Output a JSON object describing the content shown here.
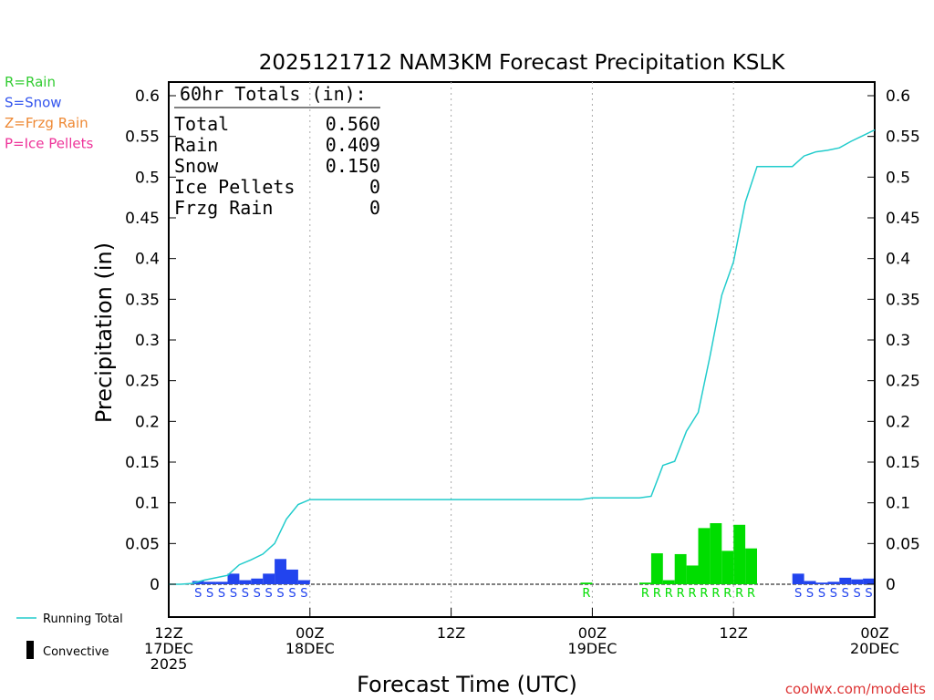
{
  "chart_data": {
    "type": "bar",
    "title": "2025121712 NAM3KM Forecast Precipitation KSLK",
    "xlabel": "Forecast Time (UTC)",
    "ylabel": "Precipitation (in)",
    "ylim": [
      -0.04,
      0.62
    ],
    "y_ticks": [
      "0",
      "0.05",
      "0.1",
      "0.15",
      "0.2",
      "0.25",
      "0.3",
      "0.35",
      "0.4",
      "0.45",
      "0.5",
      "0.55",
      "0.6"
    ],
    "y_tick_values": [
      0,
      0.05,
      0.1,
      0.15,
      0.2,
      0.25,
      0.3,
      0.35,
      0.4,
      0.45,
      0.5,
      0.55,
      0.6
    ],
    "x_range_hours": [
      0,
      60
    ],
    "x_ticks": [
      {
        "hour": 0,
        "lines": [
          "12Z",
          "17DEC",
          "2025"
        ]
      },
      {
        "hour": 12,
        "lines": [
          "00Z",
          "18DEC"
        ]
      },
      {
        "hour": 24,
        "lines": [
          "12Z"
        ]
      },
      {
        "hour": 36,
        "lines": [
          "00Z",
          "19DEC"
        ]
      },
      {
        "hour": 48,
        "lines": [
          "12Z"
        ]
      },
      {
        "hour": 60,
        "lines": [
          "00Z",
          "20DEC"
        ]
      }
    ],
    "gridlines_at_hours": [
      12,
      24,
      36,
      48
    ],
    "legend": [
      {
        "label": "R=Rain",
        "color": "#33cc33"
      },
      {
        "label": "S=Snow",
        "color": "#3355ee"
      },
      {
        "label": "Z=Frzg Rain",
        "color": "#ee8833"
      },
      {
        "label": "P=Ice Pellets",
        "color": "#ee3399"
      }
    ],
    "line_legend_label": "Running Total",
    "convective_legend_label": "Convective",
    "totals": {
      "header": "60hr Totals (in):",
      "rows": [
        {
          "label": "Total",
          "value": "0.560"
        },
        {
          "label": "Rain",
          "value": "0.409"
        },
        {
          "label": "Snow",
          "value": "0.150"
        },
        {
          "label": "Ice Pellets",
          "value": "0"
        },
        {
          "label": "Frzg Rain",
          "value": "0"
        }
      ]
    },
    "colors": {
      "rain": "#00dd00",
      "snow": "#2244ee",
      "line": "#22cccc",
      "axis": "#000000",
      "grid": "#aaaaaa"
    },
    "series": [
      {
        "name": "Snow",
        "type": "S",
        "bars": [
          [
            3,
            0.004
          ],
          [
            4,
            0.003
          ],
          [
            5,
            0.003
          ],
          [
            6,
            0.013
          ],
          [
            7,
            0.005
          ],
          [
            8,
            0.007
          ],
          [
            9,
            0.013
          ],
          [
            10,
            0.031
          ],
          [
            11,
            0.018
          ],
          [
            12,
            0.005
          ],
          [
            54,
            0.013
          ],
          [
            55,
            0.004
          ],
          [
            56,
            0.002
          ],
          [
            57,
            0.003
          ],
          [
            58,
            0.008
          ],
          [
            59,
            0.006
          ],
          [
            60,
            0.007
          ]
        ]
      },
      {
        "name": "Rain",
        "type": "R",
        "bars": [
          [
            36,
            0.002
          ],
          [
            41,
            0.002
          ],
          [
            42,
            0.038
          ],
          [
            43,
            0.005
          ],
          [
            44,
            0.037
          ],
          [
            45,
            0.023
          ],
          [
            46,
            0.069
          ],
          [
            47,
            0.075
          ],
          [
            48,
            0.041
          ],
          [
            49,
            0.073
          ],
          [
            50,
            0.044
          ]
        ]
      }
    ],
    "running_total": {
      "name": "Running Total",
      "x": [
        0,
        1,
        2,
        3,
        4,
        5,
        6,
        7,
        8,
        9,
        10,
        11,
        12,
        13,
        14,
        15,
        16,
        17,
        18,
        19,
        20,
        21,
        22,
        23,
        24,
        25,
        26,
        27,
        28,
        29,
        30,
        31,
        32,
        33,
        34,
        35,
        36,
        37,
        38,
        39,
        40,
        41,
        42,
        43,
        44,
        45,
        46,
        47,
        48,
        49,
        50,
        51,
        52,
        53,
        54,
        55,
        56,
        57,
        58,
        59,
        60
      ],
      "y": [
        0,
        0,
        0.001,
        0.005,
        0.008,
        0.011,
        0.024,
        0.03,
        0.037,
        0.05,
        0.08,
        0.098,
        0.104,
        0.104,
        0.104,
        0.104,
        0.104,
        0.104,
        0.104,
        0.104,
        0.104,
        0.104,
        0.104,
        0.104,
        0.104,
        0.104,
        0.104,
        0.104,
        0.104,
        0.104,
        0.104,
        0.104,
        0.104,
        0.104,
        0.104,
        0.104,
        0.106,
        0.106,
        0.106,
        0.106,
        0.106,
        0.108,
        0.146,
        0.151,
        0.188,
        0.211,
        0.28,
        0.355,
        0.396,
        0.469,
        0.513,
        0.513,
        0.513,
        0.513,
        0.526,
        0.531,
        0.533,
        0.536,
        0.544,
        0.551,
        0.558
      ]
    },
    "type_markers": [
      {
        "hour": 3,
        "type": "S"
      },
      {
        "hour": 4,
        "type": "S"
      },
      {
        "hour": 5,
        "type": "S"
      },
      {
        "hour": 6,
        "type": "S"
      },
      {
        "hour": 7,
        "type": "S"
      },
      {
        "hour": 8,
        "type": "S"
      },
      {
        "hour": 9,
        "type": "S"
      },
      {
        "hour": 10,
        "type": "S"
      },
      {
        "hour": 11,
        "type": "S"
      },
      {
        "hour": 12,
        "type": "S"
      },
      {
        "hour": 36,
        "type": "R"
      },
      {
        "hour": 41,
        "type": "R"
      },
      {
        "hour": 42,
        "type": "R"
      },
      {
        "hour": 43,
        "type": "R"
      },
      {
        "hour": 44,
        "type": "R"
      },
      {
        "hour": 45,
        "type": "R"
      },
      {
        "hour": 46,
        "type": "R"
      },
      {
        "hour": 47,
        "type": "R"
      },
      {
        "hour": 48,
        "type": "R"
      },
      {
        "hour": 49,
        "type": "R"
      },
      {
        "hour": 50,
        "type": "R"
      },
      {
        "hour": 54,
        "type": "S"
      },
      {
        "hour": 55,
        "type": "S"
      },
      {
        "hour": 56,
        "type": "S"
      },
      {
        "hour": 57,
        "type": "S"
      },
      {
        "hour": 58,
        "type": "S"
      },
      {
        "hour": 59,
        "type": "S"
      },
      {
        "hour": 60,
        "type": "S"
      }
    ],
    "credit": "coolwx.com/modelts"
  }
}
